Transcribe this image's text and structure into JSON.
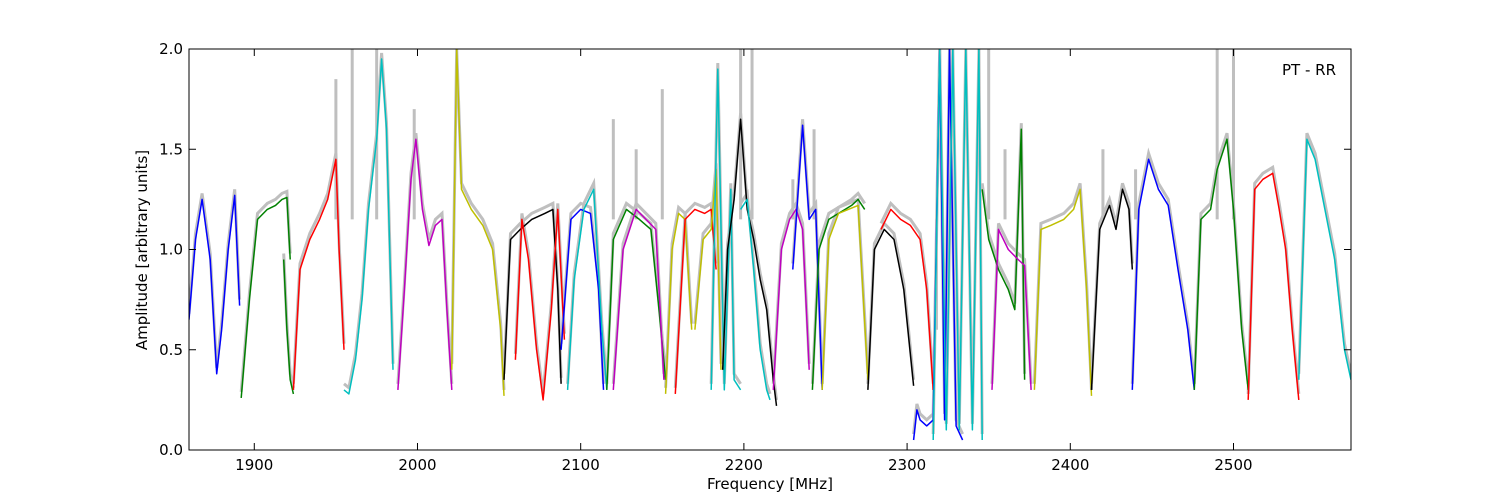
{
  "chart_data": {
    "type": "line",
    "title": "",
    "annotation": "PT - RR",
    "xlabel": "Frequency [MHz]",
    "ylabel": "Amplitude [arbitrary units]",
    "xlim": [
      1860,
      2572
    ],
    "ylim": [
      0.0,
      2.0
    ],
    "xticks": [
      1900,
      2000,
      2100,
      2200,
      2300,
      2400,
      2500
    ],
    "xtick_labels": [
      "1900",
      "2000",
      "2100",
      "2200",
      "2300",
      "2400",
      "2500"
    ],
    "yticks": [
      0.0,
      0.5,
      1.0,
      1.5,
      2.0
    ],
    "ytick_labels": [
      "0.0",
      "0.5",
      "1.0",
      "1.5",
      "2.0"
    ],
    "grid": false,
    "legend": "none",
    "background_series": {
      "color": "#bfbfbf",
      "spikes": [
        [
          1950,
          1.85
        ],
        [
          1960,
          2.0
        ],
        [
          1975,
          2.0
        ],
        [
          1998,
          1.7
        ],
        [
          2120,
          1.65
        ],
        [
          2134,
          1.5
        ],
        [
          2150,
          1.8
        ],
        [
          2198,
          2.0
        ],
        [
          2205,
          2.0
        ],
        [
          2230,
          1.35
        ],
        [
          2243,
          1.6
        ],
        [
          2318,
          0.6
        ],
        [
          2350,
          2.0
        ],
        [
          2360,
          1.5
        ],
        [
          2420,
          1.5
        ],
        [
          2440,
          1.4
        ],
        [
          2490,
          2.0
        ],
        [
          2500,
          2.0
        ]
      ]
    },
    "series": [
      {
        "color": "#0000ff",
        "x": [
          1860,
          1864,
          1868,
          1873,
          1877,
          1880,
          1884,
          1888,
          1891
        ],
        "y": [
          0.65,
          1.05,
          1.25,
          0.95,
          0.38,
          0.6,
          1.0,
          1.27,
          0.72
        ]
      },
      {
        "color": "#008000",
        "x": [
          1892,
          1897,
          1902,
          1908,
          1913,
          1917,
          1920,
          1922
        ],
        "y": [
          0.26,
          0.75,
          1.15,
          1.2,
          1.22,
          1.25,
          1.26,
          0.95
        ]
      },
      {
        "color": "#008000",
        "x": [
          1918,
          1920,
          1922,
          1924
        ],
        "y": [
          0.95,
          0.6,
          0.35,
          0.28
        ]
      },
      {
        "color": "#ff0000",
        "x": [
          1924,
          1928,
          1934,
          1940,
          1945,
          1950,
          1952,
          1955
        ],
        "y": [
          0.3,
          0.9,
          1.05,
          1.15,
          1.25,
          1.45,
          1.0,
          0.5
        ]
      },
      {
        "color": "#00bfbf",
        "x": [
          1955,
          1958,
          1962,
          1966,
          1970,
          1975,
          1978,
          1981,
          1985
        ],
        "y": [
          0.3,
          0.28,
          0.45,
          0.75,
          1.2,
          1.55,
          1.95,
          1.6,
          0.4
        ]
      },
      {
        "color": "#bf00bf",
        "x": [
          1988,
          1992,
          1996,
          1999,
          2003,
          2007,
          2011,
          2015,
          2018,
          2021
        ],
        "y": [
          0.3,
          0.8,
          1.35,
          1.55,
          1.2,
          1.02,
          1.12,
          1.15,
          0.7,
          0.3
        ]
      },
      {
        "color": "#bfbf00",
        "x": [
          2021,
          2024,
          2027,
          2033,
          2040,
          2046,
          2051,
          2053
        ],
        "y": [
          0.4,
          2.0,
          1.3,
          1.2,
          1.12,
          1.0,
          0.6,
          0.27
        ]
      },
      {
        "color": "#000000",
        "x": [
          2053,
          2057,
          2063,
          2070,
          2078,
          2083,
          2086,
          2088
        ],
        "y": [
          0.35,
          1.05,
          1.1,
          1.15,
          1.18,
          1.2,
          0.8,
          0.33
        ]
      },
      {
        "color": "#ff0000",
        "x": [
          2060,
          2064,
          2068,
          2073,
          2077,
          2082,
          2086,
          2090
        ],
        "y": [
          0.45,
          1.15,
          0.95,
          0.5,
          0.25,
          0.7,
          1.2,
          0.55
        ]
      },
      {
        "color": "#0000ff",
        "x": [
          2088,
          2094,
          2100,
          2106,
          2111,
          2114
        ],
        "y": [
          0.5,
          1.15,
          1.2,
          1.18,
          0.8,
          0.3
        ]
      },
      {
        "color": "#00bfbf",
        "x": [
          2092,
          2096,
          2102,
          2108,
          2113,
          2116
        ],
        "y": [
          0.3,
          0.85,
          1.2,
          1.3,
          0.6,
          0.3
        ]
      },
      {
        "color": "#008000",
        "x": [
          2116,
          2120,
          2128,
          2136,
          2143,
          2148,
          2152
        ],
        "y": [
          0.3,
          1.05,
          1.2,
          1.15,
          1.1,
          0.7,
          0.35
        ]
      },
      {
        "color": "#bf00bf",
        "x": [
          2120,
          2126,
          2134,
          2140,
          2146,
          2151
        ],
        "y": [
          0.3,
          1.0,
          1.2,
          1.15,
          1.1,
          0.35
        ]
      },
      {
        "color": "#bfbf00",
        "x": [
          2152,
          2156,
          2160,
          2164,
          2168
        ],
        "y": [
          0.28,
          1.0,
          1.18,
          1.15,
          0.6
        ]
      },
      {
        "color": "#ff0000",
        "x": [
          2158,
          2164,
          2170,
          2176,
          2180,
          2183
        ],
        "y": [
          0.28,
          1.15,
          1.2,
          1.18,
          1.2,
          0.9
        ]
      },
      {
        "color": "#bfbf00",
        "x": [
          2170,
          2175,
          2180,
          2183,
          2186
        ],
        "y": [
          0.6,
          1.05,
          1.1,
          1.4,
          0.4
        ]
      },
      {
        "color": "#00bfbf",
        "x": [
          2180,
          2184,
          2188,
          2192,
          2194,
          2198
        ],
        "y": [
          0.3,
          1.9,
          0.3,
          1.3,
          0.35,
          0.3
        ]
      },
      {
        "color": "#000000",
        "x": [
          2187,
          2190,
          2194,
          2198,
          2202,
          2206,
          2210,
          2214,
          2218,
          2220
        ],
        "y": [
          0.4,
          1.0,
          1.25,
          1.65,
          1.2,
          1.05,
          0.85,
          0.7,
          0.35,
          0.22
        ]
      },
      {
        "color": "#00bfbf",
        "x": [
          2198,
          2202,
          2206,
          2210,
          2214,
          2216
        ],
        "y": [
          1.2,
          1.25,
          0.9,
          0.5,
          0.3,
          0.25
        ]
      },
      {
        "color": "#bf00bf",
        "x": [
          2218,
          2223,
          2228,
          2232,
          2236,
          2240
        ],
        "y": [
          0.3,
          1.0,
          1.15,
          1.2,
          1.1,
          0.4
        ]
      },
      {
        "color": "#0000ff",
        "x": [
          2230,
          2236,
          2240,
          2244,
          2248
        ],
        "y": [
          0.9,
          1.62,
          1.15,
          1.2,
          0.3
        ]
      },
      {
        "color": "#008000",
        "x": [
          2242,
          2246,
          2252,
          2258,
          2262,
          2266,
          2270,
          2274
        ],
        "y": [
          0.3,
          1.0,
          1.15,
          1.18,
          1.2,
          1.22,
          1.25,
          1.2
        ]
      },
      {
        "color": "#bfbf00",
        "x": [
          2248,
          2252,
          2258,
          2264,
          2270,
          2276
        ],
        "y": [
          0.3,
          1.05,
          1.18,
          1.2,
          1.22,
          0.35
        ]
      },
      {
        "color": "#000000",
        "x": [
          2276,
          2280,
          2286,
          2292,
          2298,
          2304
        ],
        "y": [
          0.3,
          1.0,
          1.1,
          1.05,
          0.8,
          0.32
        ]
      },
      {
        "color": "#ff0000",
        "x": [
          2284,
          2290,
          2296,
          2302,
          2308,
          2312,
          2316
        ],
        "y": [
          1.1,
          1.2,
          1.15,
          1.12,
          1.05,
          0.8,
          0.3
        ]
      },
      {
        "color": "#0000ff",
        "x": [
          2304,
          2306,
          2308,
          2312,
          2316,
          2320,
          2323,
          2326,
          2330,
          2334
        ],
        "y": [
          0.05,
          0.2,
          0.15,
          0.12,
          0.15,
          2.0,
          0.15,
          2.0,
          0.12,
          0.05
        ]
      },
      {
        "color": "#00bfbf",
        "x": [
          2316,
          2320,
          2324,
          2328,
          2332,
          2336,
          2340,
          2344,
          2346
        ],
        "y": [
          0.05,
          2.0,
          0.1,
          2.0,
          0.1,
          2.0,
          0.1,
          2.0,
          0.05
        ]
      },
      {
        "color": "#008000",
        "x": [
          2346,
          2350,
          2356,
          2362,
          2366,
          2370,
          2372
        ],
        "y": [
          1.3,
          1.05,
          0.9,
          0.8,
          0.7,
          1.6,
          0.35
        ]
      },
      {
        "color": "#bf00bf",
        "x": [
          2352,
          2356,
          2362,
          2368,
          2372,
          2376
        ],
        "y": [
          0.3,
          1.1,
          1.0,
          0.95,
          0.92,
          0.3
        ]
      },
      {
        "color": "#bfbf00",
        "x": [
          2378,
          2382,
          2388,
          2396,
          2402,
          2406,
          2410,
          2413
        ],
        "y": [
          0.3,
          1.1,
          1.12,
          1.15,
          1.2,
          1.3,
          0.8,
          0.27
        ]
      },
      {
        "color": "#000000",
        "x": [
          2413,
          2418,
          2424,
          2428,
          2432,
          2436,
          2438
        ],
        "y": [
          0.3,
          1.1,
          1.22,
          1.1,
          1.3,
          1.2,
          0.9
        ]
      },
      {
        "color": "#0000ff",
        "x": [
          2438,
          2442,
          2448,
          2454,
          2460,
          2466,
          2472,
          2476
        ],
        "y": [
          0.3,
          1.2,
          1.45,
          1.3,
          1.22,
          0.9,
          0.6,
          0.3
        ]
      },
      {
        "color": "#008000",
        "x": [
          2476,
          2480,
          2486,
          2490,
          2496,
          2500,
          2505,
          2509
        ],
        "y": [
          0.3,
          1.15,
          1.2,
          1.4,
          1.55,
          1.2,
          0.6,
          0.3
        ]
      },
      {
        "color": "#ff0000",
        "x": [
          2509,
          2513,
          2518,
          2524,
          2528,
          2532,
          2536,
          2540
        ],
        "y": [
          0.25,
          1.3,
          1.35,
          1.38,
          1.2,
          1.0,
          0.6,
          0.25
        ]
      },
      {
        "color": "#00bfbf",
        "x": [
          2540,
          2545,
          2550,
          2556,
          2562,
          2568,
          2572
        ],
        "y": [
          0.35,
          1.55,
          1.45,
          1.2,
          0.95,
          0.5,
          0.35
        ]
      }
    ]
  }
}
